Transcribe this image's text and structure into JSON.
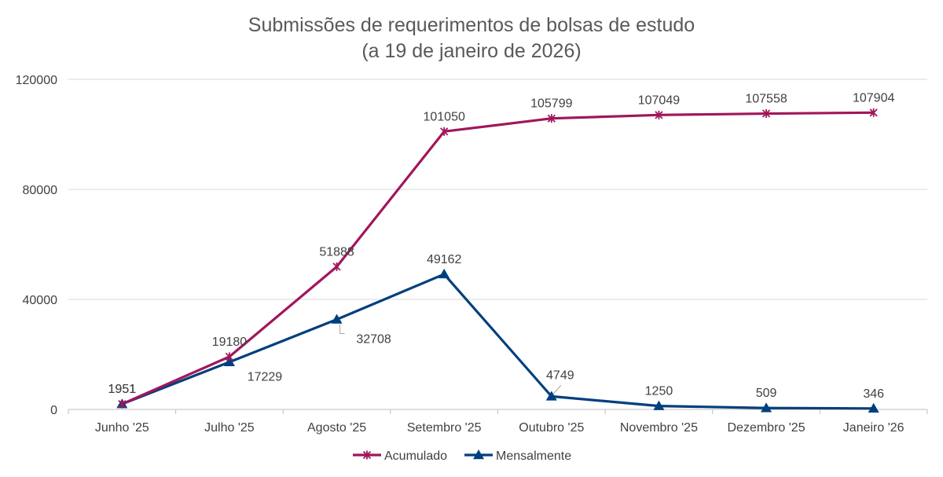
{
  "chart_data": {
    "type": "line",
    "title": "Submissões de requerimentos de bolsas de estudo",
    "subtitle": "(a 19 de janeiro de 2026)",
    "categories": [
      "Junho '25",
      "Julho '25",
      "Agosto '25",
      "Setembro '25",
      "Outubro '25",
      "Novembro '25",
      "Dezembro '25",
      "Janeiro '26"
    ],
    "ylim": [
      0,
      120000
    ],
    "yticks": [
      0,
      40000,
      80000,
      120000
    ],
    "grid": true,
    "legend_position": "bottom",
    "series": [
      {
        "name": "Acumulado",
        "color": "#A0175B",
        "marker": "star",
        "values": [
          1951,
          19180,
          51888,
          101050,
          105799,
          107049,
          107558,
          107904
        ],
        "labels": [
          "1951",
          "19180",
          "51888",
          "101050",
          "105799",
          "107049",
          "107558",
          "107904"
        ]
      },
      {
        "name": "Mensalmente",
        "color": "#003F7D",
        "marker": "triangle",
        "values": [
          1951,
          17229,
          32708,
          49162,
          4749,
          1250,
          509,
          346
        ],
        "labels": [
          "1951",
          "17229",
          "32708",
          "49162",
          "4749",
          "1250",
          "509",
          "346"
        ]
      }
    ]
  }
}
